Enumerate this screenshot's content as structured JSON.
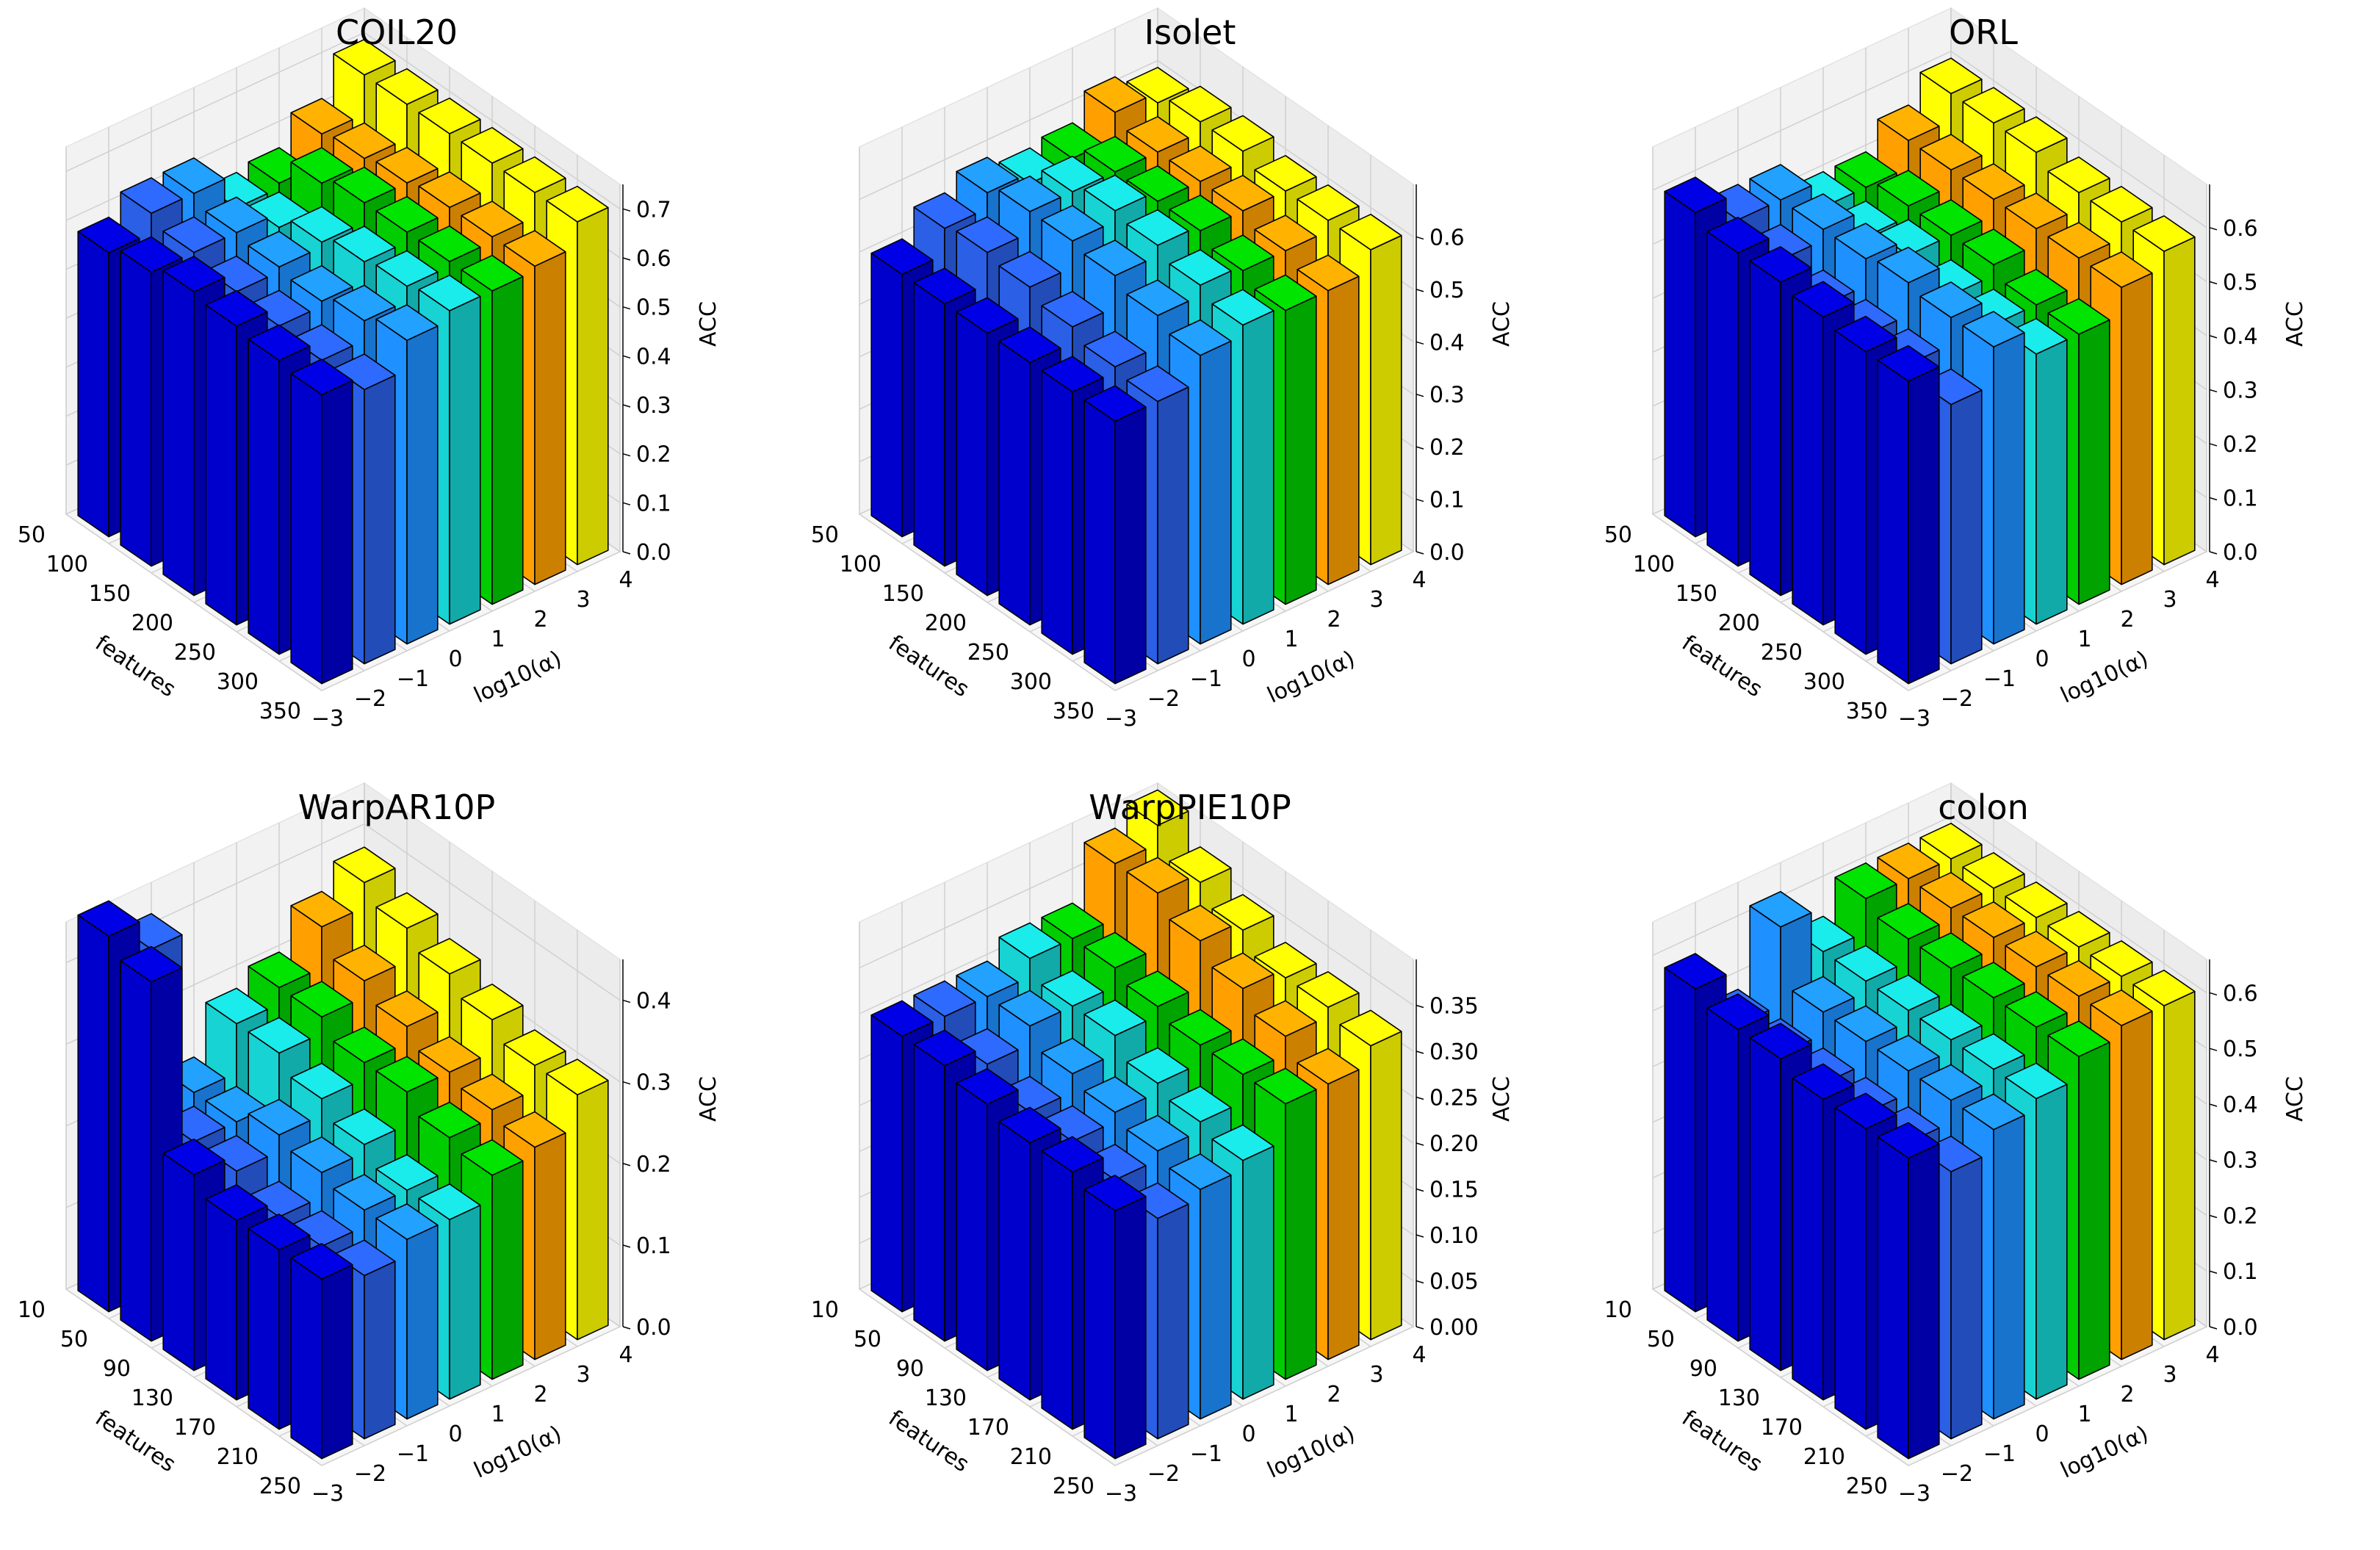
{
  "figure": {
    "colors": [
      "#0000cd",
      "#2a5fe6",
      "#1e90ff",
      "#17d3d3",
      "#00cc00",
      "#ffa000",
      "#ffff00"
    ]
  },
  "chart_data": [
    {
      "type": "bar3d",
      "title": "COIL20",
      "xlabel": "features",
      "ylabel": "log10(α)",
      "zlabel": "ACC",
      "x_ticks": [
        "50",
        "100",
        "150",
        "200",
        "250",
        "300",
        "350"
      ],
      "y_ticks": [
        "-3",
        "-2",
        "-1",
        "0",
        "1",
        "2",
        "3",
        "4"
      ],
      "z_ticks": [
        "0.0",
        "0.1",
        "0.2",
        "0.3",
        "0.4",
        "0.5",
        "0.6",
        "0.7"
      ],
      "zlim": [
        0,
        0.75
      ],
      "categories": [
        "50",
        "100",
        "150",
        "200",
        "250",
        "300"
      ],
      "series": [
        {
          "name": "-3",
          "values": [
            0.58,
            0.6,
            0.62,
            0.61,
            0.6,
            0.59
          ]
        },
        {
          "name": "-2",
          "values": [
            0.62,
            0.6,
            0.58,
            0.57,
            0.56,
            0.56
          ]
        },
        {
          "name": "-1",
          "values": [
            0.62,
            0.6,
            0.59,
            0.58,
            0.6,
            0.62
          ]
        },
        {
          "name": "0",
          "values": [
            0.55,
            0.57,
            0.6,
            0.62,
            0.63,
            0.64
          ]
        },
        {
          "name": "1",
          "values": [
            0.56,
            0.62,
            0.64,
            0.64,
            0.64,
            0.64
          ]
        },
        {
          "name": "2",
          "values": [
            0.62,
            0.63,
            0.64,
            0.65,
            0.65,
            0.65
          ]
        },
        {
          "name": "3",
          "values": [
            0.7,
            0.7,
            0.7,
            0.7,
            0.7,
            0.7
          ]
        }
      ]
    },
    {
      "type": "bar3d",
      "title": "Isolet",
      "xlabel": "features",
      "ylabel": "log10(α)",
      "zlabel": "ACC",
      "x_ticks": [
        "50",
        "100",
        "150",
        "200",
        "250",
        "300",
        "350"
      ],
      "y_ticks": [
        "-3",
        "-2",
        "-1",
        "0",
        "1",
        "2",
        "3",
        "4"
      ],
      "z_ticks": [
        "0.0",
        "0.1",
        "0.2",
        "0.3",
        "0.4",
        "0.5",
        "0.6"
      ],
      "zlim": [
        0,
        0.7
      ],
      "categories": [
        "50",
        "100",
        "150",
        "200",
        "250",
        "300"
      ],
      "series": [
        {
          "name": "-3",
          "values": [
            0.5,
            0.5,
            0.5,
            0.5,
            0.5,
            0.5
          ]
        },
        {
          "name": "-2",
          "values": [
            0.55,
            0.56,
            0.55,
            0.53,
            0.51,
            0.5
          ]
        },
        {
          "name": "-1",
          "values": [
            0.58,
            0.6,
            0.6,
            0.59,
            0.57,
            0.55
          ]
        },
        {
          "name": "0",
          "values": [
            0.56,
            0.6,
            0.62,
            0.61,
            0.59,
            0.57
          ]
        },
        {
          "name": "1",
          "values": [
            0.57,
            0.6,
            0.6,
            0.6,
            0.58,
            0.56
          ]
        },
        {
          "name": "2",
          "values": [
            0.62,
            0.6,
            0.6,
            0.6,
            0.58,
            0.56
          ]
        },
        {
          "name": "3",
          "values": [
            0.6,
            0.62,
            0.62,
            0.6,
            0.6,
            0.6
          ]
        }
      ]
    },
    {
      "type": "bar3d",
      "title": "ORL",
      "xlabel": "features",
      "ylabel": "log10(α)",
      "zlabel": "ACC",
      "x_ticks": [
        "50",
        "100",
        "150",
        "200",
        "250",
        "300",
        "350"
      ],
      "y_ticks": [
        "-3",
        "-2",
        "-1",
        "0",
        "1",
        "2",
        "3",
        "4"
      ],
      "z_ticks": [
        "0.0",
        "0.1",
        "0.2",
        "0.3",
        "0.4",
        "0.5",
        "0.6"
      ],
      "zlim": [
        0,
        0.68
      ],
      "categories": [
        "50",
        "100",
        "150",
        "200",
        "250",
        "300"
      ],
      "series": [
        {
          "name": "-3",
          "values": [
            0.6,
            0.58,
            0.58,
            0.57,
            0.56,
            0.56
          ]
        },
        {
          "name": "-2",
          "values": [
            0.55,
            0.53,
            0.5,
            0.5,
            0.5,
            0.48
          ]
        },
        {
          "name": "-1",
          "values": [
            0.55,
            0.55,
            0.55,
            0.56,
            0.55,
            0.55
          ]
        },
        {
          "name": "0",
          "values": [
            0.5,
            0.5,
            0.52,
            0.5,
            0.5,
            0.5
          ]
        },
        {
          "name": "1",
          "values": [
            0.5,
            0.52,
            0.52,
            0.52,
            0.5,
            0.5
          ]
        },
        {
          "name": "2",
          "values": [
            0.55,
            0.55,
            0.55,
            0.55,
            0.55,
            0.55
          ]
        },
        {
          "name": "3",
          "values": [
            0.6,
            0.6,
            0.6,
            0.58,
            0.58,
            0.58
          ]
        }
      ]
    },
    {
      "type": "bar3d",
      "title": "WarpAR10P",
      "xlabel": "features",
      "ylabel": "log10(α)",
      "zlabel": "ACC",
      "x_ticks": [
        "10",
        "50",
        "90",
        "130",
        "170",
        "210",
        "250"
      ],
      "y_ticks": [
        "-3",
        "-2",
        "-1",
        "0",
        "1",
        "2",
        "3",
        "4"
      ],
      "z_ticks": [
        "0.0",
        "0.1",
        "0.2",
        "0.3",
        "0.4"
      ],
      "zlim": [
        0,
        0.45
      ],
      "categories": [
        "10",
        "50",
        "90",
        "130",
        "170",
        "210"
      ],
      "series": [
        {
          "name": "-3",
          "values": [
            0.46,
            0.44,
            0.24,
            0.22,
            0.22,
            0.22
          ]
        },
        {
          "name": "-2",
          "values": [
            0.42,
            0.22,
            0.22,
            0.2,
            0.2,
            0.2
          ]
        },
        {
          "name": "-1",
          "values": [
            0.22,
            0.22,
            0.24,
            0.23,
            0.22,
            0.22
          ]
        },
        {
          "name": "0",
          "values": [
            0.28,
            0.28,
            0.26,
            0.24,
            0.22,
            0.22
          ]
        },
        {
          "name": "1",
          "values": [
            0.3,
            0.3,
            0.28,
            0.28,
            0.26,
            0.25
          ]
        },
        {
          "name": "2",
          "values": [
            0.35,
            0.32,
            0.3,
            0.28,
            0.27,
            0.26
          ]
        },
        {
          "name": "3",
          "values": [
            0.38,
            0.36,
            0.34,
            0.32,
            0.3,
            0.3
          ]
        }
      ]
    },
    {
      "type": "bar3d",
      "title": "WarpPIE10P",
      "xlabel": "features",
      "ylabel": "log10(α)",
      "zlabel": "ACC",
      "x_ticks": [
        "10",
        "50",
        "90",
        "130",
        "170",
        "210",
        "250"
      ],
      "y_ticks": [
        "-3",
        "-2",
        "-1",
        "0",
        "1",
        "2",
        "3",
        "4"
      ],
      "z_ticks": [
        "0.00",
        "0.05",
        "0.10",
        "0.15",
        "0.20",
        "0.25",
        "0.30",
        "0.35"
      ],
      "zlim": [
        0,
        0.4
      ],
      "categories": [
        "10",
        "50",
        "90",
        "130",
        "170",
        "210"
      ],
      "series": [
        {
          "name": "-3",
          "values": [
            0.3,
            0.3,
            0.29,
            0.28,
            0.28,
            0.27
          ]
        },
        {
          "name": "-2",
          "values": [
            0.3,
            0.28,
            0.26,
            0.26,
            0.25,
            0.24
          ]
        },
        {
          "name": "-1",
          "values": [
            0.3,
            0.3,
            0.28,
            0.27,
            0.26,
            0.25
          ]
        },
        {
          "name": "0",
          "values": [
            0.32,
            0.3,
            0.3,
            0.28,
            0.27,
            0.26
          ]
        },
        {
          "name": "1",
          "values": [
            0.32,
            0.32,
            0.31,
            0.3,
            0.3,
            0.3
          ]
        },
        {
          "name": "2",
          "values": [
            0.38,
            0.38,
            0.36,
            0.34,
            0.32,
            0.3
          ]
        },
        {
          "name": "3",
          "values": [
            0.4,
            0.37,
            0.35,
            0.33,
            0.33,
            0.32
          ]
        }
      ]
    },
    {
      "type": "bar3d",
      "title": "colon",
      "xlabel": "features",
      "ylabel": "log10(α)",
      "zlabel": "ACC",
      "x_ticks": [
        "10",
        "50",
        "90",
        "130",
        "170",
        "210",
        "250"
      ],
      "y_ticks": [
        "-3",
        "-2",
        "-1",
        "0",
        "1",
        "2",
        "3",
        "4"
      ],
      "z_ticks": [
        "0.0",
        "0.1",
        "0.2",
        "0.3",
        "0.4",
        "0.5",
        "0.6"
      ],
      "zlim": [
        0,
        0.66
      ],
      "categories": [
        "10",
        "50",
        "90",
        "130",
        "170",
        "210"
      ],
      "series": [
        {
          "name": "-3",
          "values": [
            0.58,
            0.56,
            0.56,
            0.54,
            0.54,
            0.54
          ]
        },
        {
          "name": "-2",
          "values": [
            0.48,
            0.48,
            0.48,
            0.48,
            0.48,
            0.48
          ]
        },
        {
          "name": "-1",
          "values": [
            0.62,
            0.52,
            0.52,
            0.52,
            0.52,
            0.52
          ]
        },
        {
          "name": "0",
          "values": [
            0.54,
            0.54,
            0.54,
            0.54,
            0.54,
            0.54
          ]
        },
        {
          "name": "1",
          "values": [
            0.6,
            0.58,
            0.58,
            0.58,
            0.58,
            0.58
          ]
        },
        {
          "name": "2",
          "values": [
            0.6,
            0.6,
            0.6,
            0.6,
            0.6,
            0.6
          ]
        },
        {
          "name": "3",
          "values": [
            0.6,
            0.6,
            0.6,
            0.6,
            0.6,
            0.6
          ]
        }
      ]
    }
  ]
}
